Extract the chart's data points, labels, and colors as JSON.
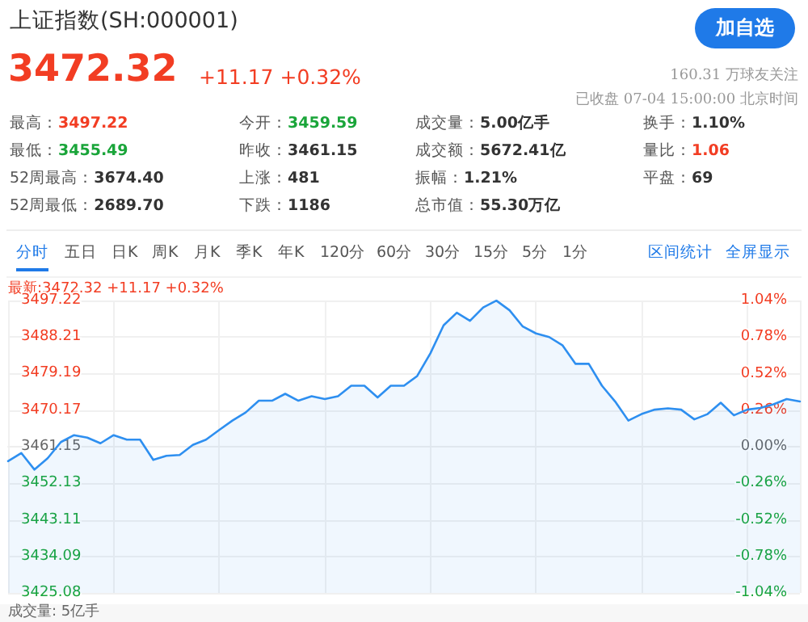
{
  "chart_data": {
    "type": "area",
    "title": "上证指数(SH:000001)",
    "annotations": [
      "3472.32",
      "+11.17 +0.32%",
      "160.31 万球友关注",
      "已收盘 07-04 15:00:00 北京时间",
      "最高：3497.22",
      "今开：3459.59",
      "成交量：5.00亿手",
      "换手：1.10%",
      "最低：3455.49",
      "昨收：3461.15",
      "成交额：5672.41亿",
      "量比：1.06",
      "52周最高：3674.40",
      "上涨：481",
      "振幅：1.21%",
      "平盘：69",
      "52周最低：2689.70",
      "下跌：1186",
      "总市值：55.30万亿",
      "分时",
      "五日",
      "日K",
      "周K",
      "月K",
      "季K",
      "年K",
      "120分",
      "60分",
      "30分",
      "15分",
      "5分",
      "1分",
      "区间统计",
      "全屏显示",
      "加自选",
      "最新:3472.32 +11.17 +0.32%",
      "成交量: 5亿手"
    ],
    "categories": [
      null,
      null,
      null,
      null,
      null,
      null,
      null,
      null,
      null,
      null,
      null,
      null,
      null,
      null,
      null,
      null,
      null,
      null,
      null,
      null,
      null,
      null,
      null,
      null,
      null,
      null,
      null,
      null,
      null,
      null,
      null,
      null,
      null,
      null,
      null,
      null,
      null,
      null,
      null,
      null,
      null,
      null,
      null,
      null,
      null,
      null,
      null,
      null,
      null,
      null,
      null,
      null,
      null,
      null,
      null,
      null,
      null,
      null,
      null,
      null,
      null
    ],
    "series": [
      {
        "color": "#2e8ff0",
        "values": [
          3457.6,
          3459.6,
          3455.5,
          3458.3,
          3462.3,
          3464.0,
          3463.4,
          3462.0,
          3464.0,
          3462.9,
          3462.9,
          3457.9,
          3458.9,
          3459.1,
          3461.6,
          3462.9,
          3465.3,
          3467.6,
          3469.6,
          3472.5,
          3472.5,
          3474.2,
          3472.5,
          3473.6,
          3472.9,
          3473.6,
          3476.2,
          3476.2,
          3473.3,
          3476.2,
          3476.2,
          3478.6,
          3484.2,
          3491.1,
          3494.2,
          3492.2,
          3495.5,
          3497.2,
          3494.8,
          3490.8,
          3489.1,
          3488.2,
          3486.2,
          3481.6,
          3481.6,
          3476.2,
          3472.3,
          3467.6,
          3469.2,
          3470.3,
          3470.6,
          3470.3,
          3467.9,
          3469.2,
          3472.0,
          3468.9,
          3470.3,
          3470.7,
          3471.6,
          3472.9,
          3472.3
        ]
      }
    ],
    "ylim": [
      3425.08,
      3497.22
    ],
    "yticks": [
      3425.08,
      3434.09,
      3443.11,
      3452.13,
      3461.15,
      3470.17,
      3479.19,
      3488.21,
      3497.22
    ],
    "y2lim": [
      -1.04,
      1.04
    ],
    "y2ticks": [
      {
        "value": -1.04,
        "label": "-1.04%"
      },
      {
        "value": -0.78,
        "label": "-0.78%"
      },
      {
        "value": -0.52,
        "label": "-0.52%"
      },
      {
        "value": -0.26,
        "label": "-0.26%"
      },
      {
        "value": 0,
        "label": "0.00%"
      },
      {
        "value": 0.26,
        "label": "0.26%"
      },
      {
        "value": 0.52,
        "label": "0.52%"
      },
      {
        "value": 0.78,
        "label": "0.78%"
      },
      {
        "value": 1.04,
        "label": "1.04%"
      }
    ],
    "grid": true,
    "tick_labels": "y",
    "line_style": "solid"
  }
}
